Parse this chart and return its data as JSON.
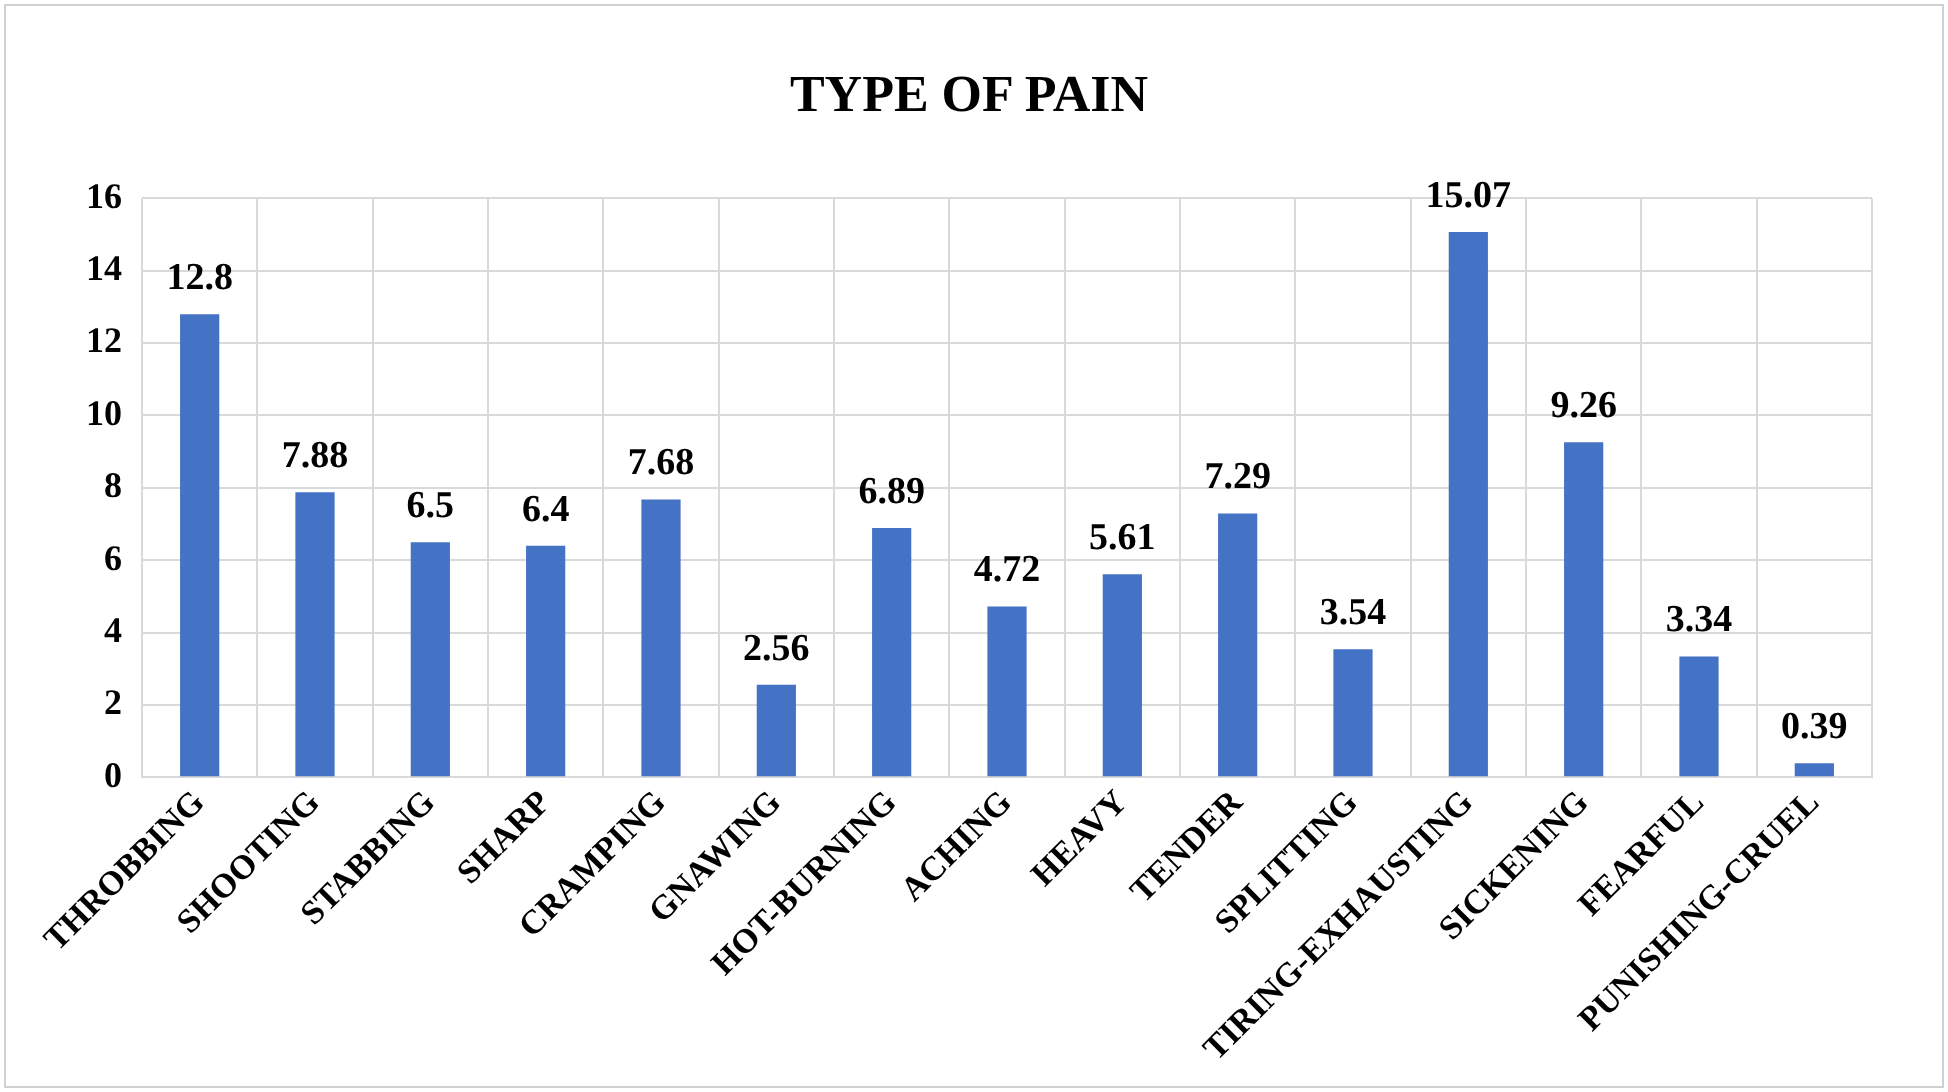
{
  "chart_data": {
    "type": "bar",
    "title": "TYPE OF PAIN",
    "categories": [
      "THROBBING",
      "SHOOTING",
      "STABBING",
      "SHARP",
      "CRAMPING",
      "GNAWING",
      "HOT-BURNING",
      "ACHING",
      "HEAVY",
      "TENDER",
      "SPLITTING",
      "TIRING-EXHAUSTING",
      "SICKENING",
      "FEARFUL",
      "PUNISHING-CRUEL"
    ],
    "values": [
      12.8,
      7.88,
      6.5,
      6.4,
      7.68,
      2.56,
      6.89,
      4.72,
      5.61,
      7.29,
      3.54,
      15.07,
      9.26,
      3.34,
      0.39
    ],
    "color": "#4472c4",
    "ylim": [
      0,
      16
    ],
    "yticks": [
      0,
      2,
      4,
      6,
      8,
      10,
      12,
      14,
      16
    ],
    "grid": true,
    "data_labels": true,
    "legend": false
  }
}
